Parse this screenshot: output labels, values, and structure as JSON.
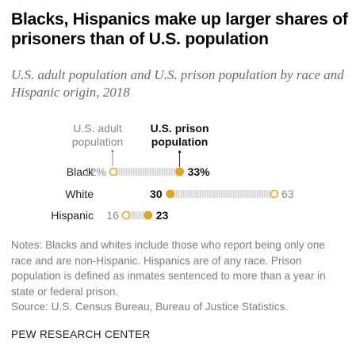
{
  "chart_data": {
    "type": "dot",
    "title": "Blacks, Hispanics make up larger shares of prisoners than of U.S. population",
    "subtitle": "U.S. adult population and U.S. prison population by race and Hispanic origin, 2018",
    "series": [
      {
        "name": "U.S. adult population",
        "values": [
          12,
          63,
          16
        ],
        "color": "#e9a825",
        "style": "hollow"
      },
      {
        "name": "U.S. prison population",
        "values": [
          33,
          30,
          23
        ],
        "color": "#e1a722",
        "style": "filled"
      }
    ],
    "categories": [
      "Black",
      "White",
      "Hispanic"
    ],
    "data_labels": {
      "population": [
        "12%",
        "63",
        "16"
      ],
      "prison": [
        "33%",
        "30",
        "23"
      ]
    },
    "legend": {
      "population": [
        "U.S. adult",
        "population"
      ],
      "prison": [
        "U.S. prison",
        "population"
      ]
    },
    "notes": [
      "Notes: Blacks and whites include those who report being only one race and are non-Hispanic. Hispanics are of any race. Prison population is defined as inmates sentenced to more than a year in state or federal prison.",
      "Source: U.S. Census Bureau, Bureau of Justice Statistics."
    ],
    "footer": "PEW RESEARCH CENTER"
  }
}
